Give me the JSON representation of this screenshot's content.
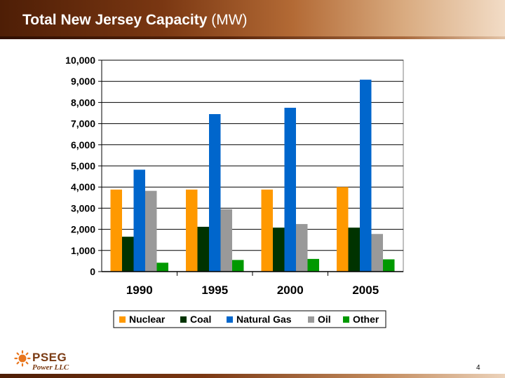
{
  "slide": {
    "title": "Total New Jersey Capacity",
    "title_unit": "(MW)",
    "page_number": "4",
    "logo": {
      "name": "PSEG",
      "subtitle": "Power LLC"
    }
  },
  "colors": {
    "Nuclear": "#FF9900",
    "Coal": "#003300",
    "Natural Gas": "#0066CC",
    "Oil": "#999999",
    "Other": "#009900"
  },
  "chart_data": {
    "type": "bar",
    "title": "",
    "xlabel": "",
    "ylabel": "",
    "categories": [
      "1990",
      "1995",
      "2000",
      "2005"
    ],
    "series": [
      {
        "name": "Nuclear",
        "values": [
          3880,
          3880,
          3880,
          4000
        ]
      },
      {
        "name": "Coal",
        "values": [
          1650,
          2120,
          2080,
          2080
        ]
      },
      {
        "name": "Natural Gas",
        "values": [
          4820,
          7450,
          7750,
          9080
        ]
      },
      {
        "name": "Oil",
        "values": [
          3820,
          2950,
          2250,
          1780
        ]
      },
      {
        "name": "Other",
        "values": [
          420,
          550,
          600,
          580
        ]
      }
    ],
    "ylim": [
      0,
      10000
    ],
    "yticks": [
      "0",
      "1,000",
      "2,000",
      "3,000",
      "4,000",
      "5,000",
      "6,000",
      "7,000",
      "8,000",
      "9,000",
      "10,000"
    ],
    "grid": true,
    "legend_position": "bottom"
  }
}
